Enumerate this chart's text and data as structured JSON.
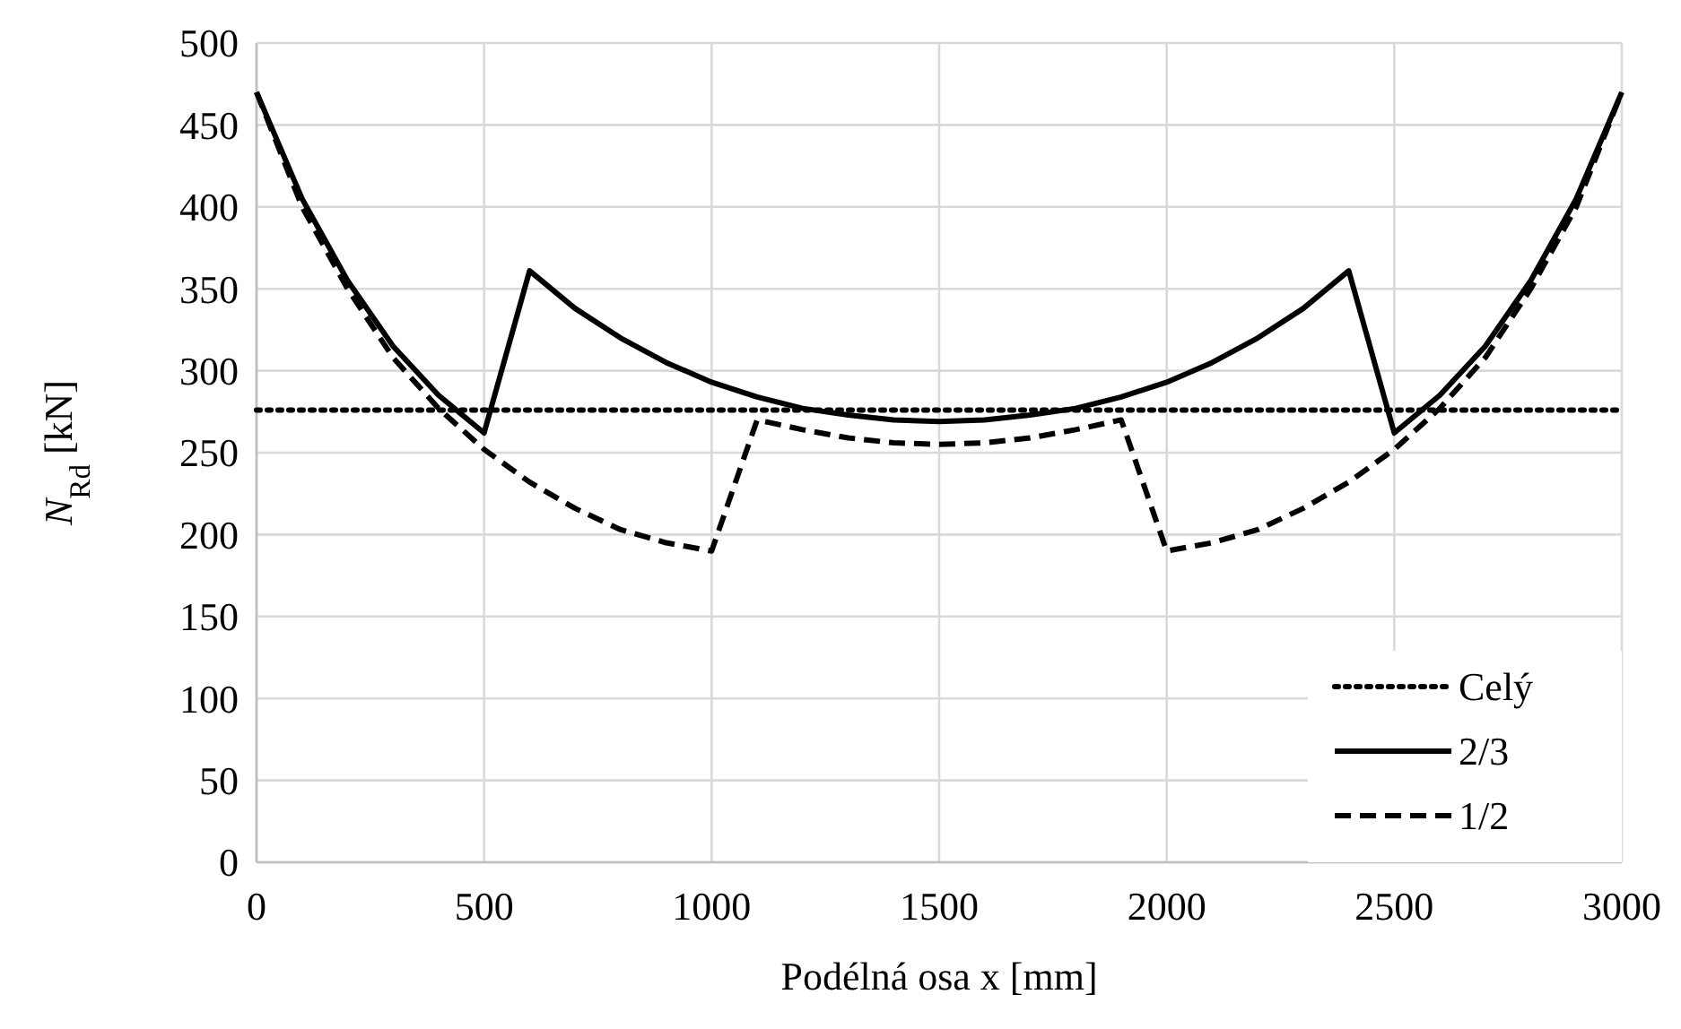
{
  "chart_data": {
    "type": "line",
    "xlabel": "Podélná osa x [mm]",
    "ylabel": "N$_{Rd}$ [kN]",
    "xlim": [
      0,
      3000
    ],
    "xticks": [
      0,
      500,
      1000,
      1500,
      2000,
      2500,
      3000
    ],
    "ylim": [
      0,
      500
    ],
    "yticks": [
      0,
      50,
      100,
      150,
      200,
      250,
      300,
      350,
      400,
      450,
      500
    ],
    "grid": true,
    "legend": "bottom right",
    "series": [
      {
        "name": "Celý",
        "color": "#000000",
        "line_style": "dotted",
        "x": [
          0,
          3000
        ],
        "values": [
          276,
          276
        ]
      },
      {
        "name": "2/3",
        "color": "#000000",
        "line_style": "solid",
        "x": [
          0,
          100,
          200,
          300,
          400,
          500,
          600,
          700,
          800,
          900,
          1000,
          1100,
          1200,
          1300,
          1400,
          1500,
          1600,
          1700,
          1800,
          1900,
          2000,
          2100,
          2200,
          2300,
          2400,
          2500,
          2600,
          2700,
          2800,
          2900,
          3000
        ],
        "values": [
          470,
          405,
          355,
          315,
          285,
          262,
          361,
          338,
          320,
          305,
          293,
          284,
          277,
          273,
          270,
          269,
          270,
          273,
          277,
          284,
          293,
          305,
          320,
          338,
          361,
          262,
          285,
          315,
          355,
          405,
          470
        ]
      },
      {
        "name": "1/2",
        "color": "#000000",
        "line_style": "dashed",
        "x": [
          0,
          100,
          200,
          300,
          400,
          500,
          600,
          700,
          800,
          900,
          1000,
          1100,
          1200,
          1300,
          1400,
          1500,
          1600,
          1700,
          1800,
          1900,
          2000,
          2100,
          2200,
          2300,
          2400,
          2500,
          2600,
          2700,
          2800,
          2900,
          3000
        ],
        "values": [
          470,
          400,
          350,
          308,
          277,
          252,
          232,
          216,
          203,
          195,
          190,
          270,
          264,
          259,
          256,
          255,
          256,
          259,
          264,
          270,
          190,
          195,
          203,
          216,
          232,
          252,
          277,
          308,
          350,
          400,
          470
        ]
      }
    ]
  }
}
